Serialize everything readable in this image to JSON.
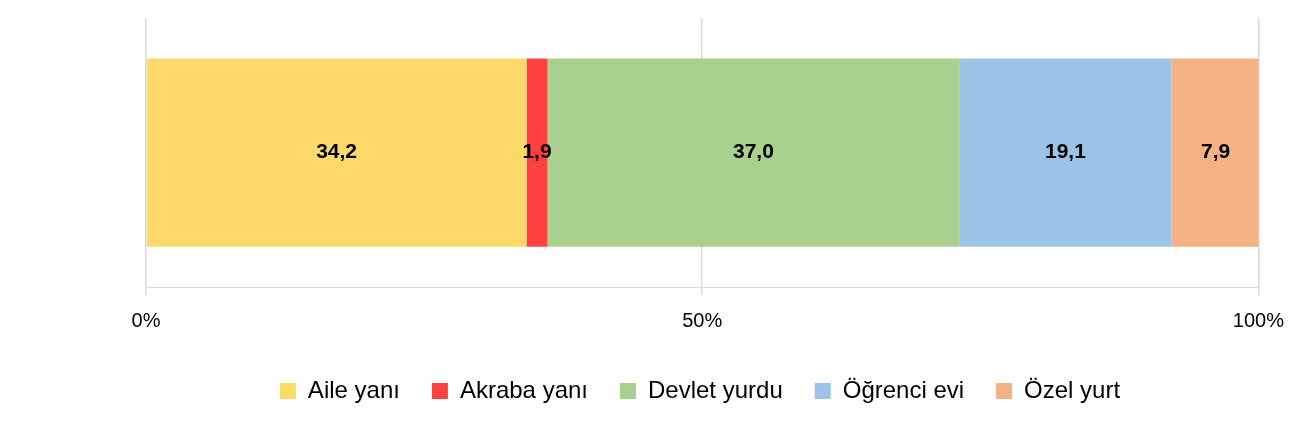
{
  "chart_data": {
    "type": "bar",
    "orientation": "horizontal",
    "stacked": true,
    "categories": [
      null
    ],
    "series": [
      {
        "name": "Aile yanı",
        "color": "#fdd96a",
        "values": [
          34.2
        ],
        "value_labels": [
          "34,2"
        ]
      },
      {
        "name": "Akraba yanı",
        "color": "#ff4040",
        "values": [
          1.9
        ],
        "value_labels": [
          "1,9"
        ]
      },
      {
        "name": "Devlet yurdu",
        "color": "#a9d18e",
        "values": [
          37.0
        ],
        "value_labels": [
          "37,0"
        ]
      },
      {
        "name": "Öğrenci evi",
        "color": "#9dc3e6",
        "values": [
          19.1
        ],
        "value_labels": [
          "19,1"
        ]
      },
      {
        "name": "Özel yurt",
        "color": "#f4b183",
        "values": [
          7.9
        ],
        "value_labels": [
          "7,9"
        ]
      }
    ],
    "xlim": [
      0,
      100
    ],
    "xticks": [
      {
        "value": 0,
        "label": "0%"
      },
      {
        "value": 50,
        "label": "50%"
      },
      {
        "value": 100,
        "label": "100%"
      }
    ],
    "grid": "x",
    "legend": "bottom"
  }
}
